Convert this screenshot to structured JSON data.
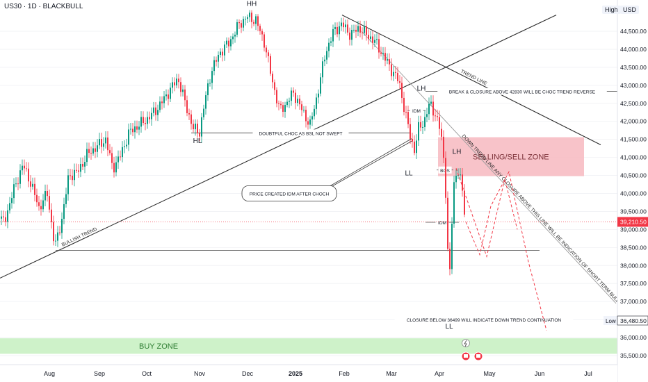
{
  "header": {
    "title": "US30 · 1D · BLACKBULL",
    "high_label": "High",
    "currency": "USD"
  },
  "chart_data": {
    "type": "candlestick",
    "symbol": "US30",
    "timeframe": "1D",
    "broker": "BLACKBULL",
    "ylim": [
      35400,
      45200
    ],
    "y_ticks": [
      35500,
      36000,
      36500,
      37000,
      37500,
      38000,
      38500,
      39000,
      39500,
      40000,
      40500,
      41000,
      41500,
      42000,
      42500,
      43000,
      43500,
      44000,
      44500
    ],
    "y_tick_labels": [
      "35,500.00",
      "36,000.00",
      "36,500.00",
      "37,000.00",
      "37,500.00",
      "38,000.00",
      "38,500.00",
      "39,000.00",
      "39,500.00",
      "40,000.00",
      "40,500.00",
      "41,000.00",
      "41,500.00",
      "42,000.00",
      "42,500.00",
      "43,000.00",
      "43,500.00",
      "44,000.00",
      "44,500.00"
    ],
    "x_months": [
      "Aug",
      "Sep",
      "Oct",
      "Nov",
      "Dec",
      "2025",
      "Feb",
      "Mar",
      "Apr",
      "May",
      "Jun",
      "Jul"
    ],
    "current_price": 39210.5,
    "current_price_label": "39,210.50",
    "low_label": "Low",
    "low_value_label": "36,480.50",
    "price_path": [
      [
        0,
        39300
      ],
      [
        6,
        39200
      ],
      [
        18,
        40000
      ],
      [
        33,
        40800
      ],
      [
        44,
        40300
      ],
      [
        56,
        39600
      ],
      [
        68,
        40000
      ],
      [
        79,
        38500
      ],
      [
        89,
        39300
      ],
      [
        99,
        40500
      ],
      [
        112,
        40600
      ],
      [
        126,
        41100
      ],
      [
        140,
        41300
      ],
      [
        152,
        41500
      ],
      [
        162,
        40700
      ],
      [
        172,
        41000
      ],
      [
        186,
        41700
      ],
      [
        200,
        41900
      ],
      [
        214,
        42100
      ],
      [
        228,
        42400
      ],
      [
        242,
        42800
      ],
      [
        256,
        43200
      ],
      [
        268,
        42400
      ],
      [
        278,
        41800
      ],
      [
        287,
        41700
      ],
      [
        295,
        42600
      ],
      [
        304,
        43400
      ],
      [
        316,
        43900
      ],
      [
        330,
        44200
      ],
      [
        344,
        44700
      ],
      [
        356,
        44900
      ],
      [
        368,
        44800
      ],
      [
        380,
        44200
      ],
      [
        392,
        43100
      ],
      [
        402,
        42300
      ],
      [
        412,
        42500
      ],
      [
        422,
        42800
      ],
      [
        432,
        42400
      ],
      [
        446,
        41900
      ],
      [
        456,
        42700
      ],
      [
        468,
        43900
      ],
      [
        480,
        44500
      ],
      [
        492,
        44700
      ],
      [
        504,
        44400
      ],
      [
        516,
        44600
      ],
      [
        528,
        44400
      ],
      [
        540,
        44200
      ],
      [
        552,
        43800
      ],
      [
        564,
        43400
      ],
      [
        574,
        43100
      ],
      [
        582,
        42300
      ],
      [
        590,
        41600
      ],
      [
        596,
        41200
      ],
      [
        602,
        41800
      ],
      [
        610,
        42000
      ],
      [
        618,
        42500
      ],
      [
        626,
        42200
      ],
      [
        634,
        41700
      ],
      [
        640,
        40600
      ],
      [
        646,
        37300
      ],
      [
        652,
        40200
      ],
      [
        658,
        40700
      ],
      [
        664,
        40200
      ],
      [
        670,
        39210
      ]
    ],
    "levels": [
      {
        "label": "DOUBTFUL CHOC AS BSL NOT SWEPT",
        "price": 41680,
        "x0": 275,
        "x1": 590
      },
      {
        "label": "BREAK & CLOSURE ABOVE 42830 WILL BE CHOC TREND REVERSE",
        "price": 42830,
        "x0": 612,
        "x1": 890
      },
      {
        "label": "BOS",
        "price": 40650,
        "x0": 628,
        "x1": 652
      },
      {
        "label": "IDM",
        "price": 42300,
        "x0": 586,
        "x1": 612
      },
      {
        "label": "IDM",
        "price": 39200,
        "x0": 612,
        "x1": 660
      },
      {
        "label": "",
        "price": 38420,
        "x0": 80,
        "x1": 776
      },
      {
        "label": "CLOSURE BELOW 36499 WILL INDICATE DOWN TREND CONTINUATION",
        "price": 36499,
        "x0": 620,
        "x1": 772
      }
    ],
    "trendlines": [
      {
        "label": "BULLISH TREND",
        "x0": 0,
        "p0": 37650,
        "x1": 800,
        "p1": 44950
      },
      {
        "label": "TREND LINE",
        "x0": 492,
        "p0": 44950,
        "x1": 864,
        "p1": 41350
      },
      {
        "label": "DOWN TREND LINE ANY CLOSURE ABOVE THIS LINE WILL BE INDICATION OF SHORT TERM BULLISH MOVE",
        "x0": 520,
        "p0": 44500,
        "x1": 886,
        "p1": 36950
      }
    ],
    "swing_labels": [
      {
        "text": "HH",
        "x": 362,
        "price": 45200
      },
      {
        "text": "HL",
        "x": 284,
        "price": 41400
      },
      {
        "text": "LH",
        "x": 606,
        "price": 42850
      },
      {
        "text": "LL",
        "x": 588,
        "price": 40500
      },
      {
        "text": "LH",
        "x": 657,
        "price": 41100
      },
      {
        "text": "LL",
        "x": 646,
        "price": 36250
      }
    ],
    "zones": [
      {
        "label": "SELLING/SELL ZONE",
        "x0": 630,
        "x1": 840,
        "p_top": 41560,
        "p_bot": 40480,
        "color": "#f7b9c0"
      },
      {
        "label": "BUY ZONE",
        "x0": 0,
        "x1": 888,
        "p_top": 35980,
        "p_bot": 35550,
        "color": "#c6f0c0"
      }
    ],
    "callout": {
      "text": "PRICE CREATED IDM AFTER CHOCH",
      "x": 352,
      "price": 40000
    },
    "projections": [
      [
        [
          670,
          39210
        ],
        [
          690,
          38300
        ],
        [
          706,
          39650
        ],
        [
          732,
          40600
        ],
        [
          760,
          38100
        ],
        [
          786,
          36200
        ]
      ],
      [
        [
          656,
          40700
        ],
        [
          700,
          38250
        ],
        [
          726,
          40400
        ],
        [
          744,
          39000
        ]
      ]
    ]
  }
}
